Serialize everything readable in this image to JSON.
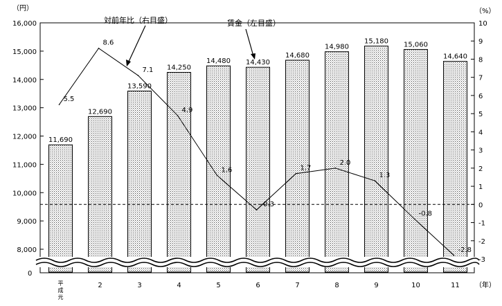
{
  "chart_data": {
    "type": "bar+line",
    "categories": [
      "平成元",
      "2",
      "3",
      "4",
      "5",
      "6",
      "7",
      "8",
      "9",
      "10",
      "11"
    ],
    "series": [
      {
        "name": "賃金（左目盛）",
        "type": "bar",
        "axis": "left",
        "values": [
          11690,
          12690,
          13590,
          14250,
          14480,
          14430,
          14680,
          14980,
          15180,
          15060,
          14640
        ],
        "labels": [
          "11,690",
          "12,690",
          "13,590",
          "14,250",
          "14,480",
          "14,430",
          "14,680",
          "14,980",
          "15,180",
          "15,060",
          "14,640"
        ]
      },
      {
        "name": "対前年比（右目盛）",
        "type": "line",
        "axis": "right",
        "values": [
          5.5,
          8.6,
          7.1,
          4.9,
          1.6,
          -0.3,
          1.7,
          2.0,
          1.3,
          -0.8,
          -2.8
        ],
        "labels": [
          "5.5",
          "8.6",
          "7.1",
          "4.9",
          "1.6",
          "-0.3",
          "1.7",
          "2.0",
          "1.3",
          "-0.8",
          "-2.8"
        ]
      }
    ],
    "left_axis": {
      "unit": "（円）",
      "ylim": [
        7500,
        16000
      ],
      "break_value": 0,
      "ticks": [
        8000,
        9000,
        10000,
        11000,
        12000,
        13000,
        14000,
        15000,
        16000
      ],
      "tick_labels": [
        "8,000",
        "9,000",
        "10,000",
        "11,000",
        "12,000",
        "13,000",
        "14,000",
        "15,000",
        "16,000"
      ],
      "break_label": "0"
    },
    "right_axis": {
      "unit": "（%）",
      "ylim": [
        -3,
        10
      ],
      "ticks": [
        -3,
        -2,
        -1,
        0,
        1,
        2,
        3,
        4,
        5,
        6,
        7,
        8,
        9,
        10
      ],
      "tick_labels": [
        "-3",
        "-2",
        "-1",
        "0",
        "1",
        "2",
        "3",
        "4",
        "5",
        "6",
        "7",
        "8",
        "9",
        "10"
      ]
    },
    "x_axis": {
      "unit": "（年）"
    },
    "zero_line": true,
    "annotations": [
      "対前年比（右目盛）",
      "賃金（左目盛）"
    ]
  }
}
